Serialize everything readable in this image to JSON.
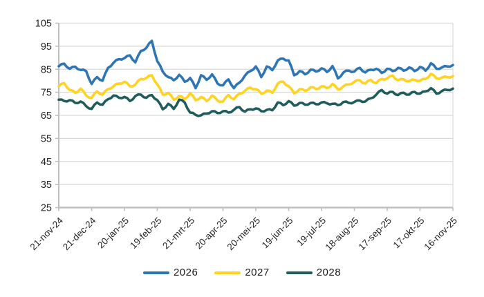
{
  "chart_data": {
    "type": "line",
    "title": "",
    "xlabel": "",
    "ylabel": "",
    "ylim": [
      25,
      105
    ],
    "y_ticks": [
      25,
      35,
      45,
      55,
      65,
      75,
      85,
      95,
      105
    ],
    "grid": true,
    "legend_position": "bottom",
    "grid_color": "#D9D9D9",
    "axis_color": "#BFBFBF",
    "label_color": "#262626",
    "x_tick_labels": [
      "21-nov-24",
      "21-dec-24",
      "20-jan-25",
      "19-feb-25",
      "21-mrt-25",
      "20-apr-25",
      "20-mei-25",
      "19-jun-25",
      "19-jul-25",
      "18-aug-25",
      "17-sep-25",
      "17-okt-25",
      "16-nov-25"
    ],
    "x_tick_days": [
      0,
      30,
      60,
      90,
      120,
      150,
      180,
      210,
      240,
      270,
      300,
      330,
      360
    ],
    "x_days": [
      0,
      5,
      10,
      15,
      20,
      25,
      30,
      35,
      40,
      45,
      50,
      55,
      60,
      65,
      70,
      75,
      80,
      85,
      90,
      95,
      100,
      105,
      110,
      115,
      120,
      125,
      130,
      135,
      140,
      145,
      150,
      155,
      160,
      165,
      170,
      175,
      180,
      185,
      190,
      195,
      200,
      205,
      210,
      215,
      220,
      225,
      230,
      235,
      240,
      245,
      250,
      255,
      260,
      265,
      270,
      275,
      280,
      285,
      290,
      295,
      300,
      305,
      310,
      315,
      320,
      325,
      330,
      335,
      340,
      345,
      350,
      355,
      360
    ],
    "series": [
      {
        "name": "2026",
        "color": "#2E75B6",
        "values": [
          86.3,
          87.4,
          85.2,
          86.1,
          84.7,
          84.2,
          78.6,
          81.6,
          80.0,
          85.6,
          87.8,
          89.4,
          89.8,
          91.0,
          88.0,
          93.0,
          94.3,
          97.3,
          88.5,
          84.0,
          81.6,
          80.2,
          82.6,
          79.6,
          81.2,
          76.8,
          82.4,
          80.4,
          82.8,
          78.8,
          78.0,
          80.6,
          76.8,
          79.2,
          82.2,
          84.2,
          86.2,
          81.6,
          86.2,
          84.6,
          88.8,
          89.6,
          88.8,
          82.4,
          84.2,
          82.8,
          84.8,
          84.0,
          85.4,
          83.8,
          86.4,
          81.0,
          83.6,
          84.4,
          84.0,
          85.6,
          83.6,
          84.8,
          85.2,
          83.4,
          85.2,
          84.2,
          85.6,
          84.4,
          85.8,
          84.2,
          86.0,
          84.4,
          87.6,
          85.2,
          85.8,
          86.2,
          86.8
        ]
      },
      {
        "name": "2027",
        "color": "#FFD320",
        "values": [
          77.6,
          79.0,
          76.0,
          74.8,
          76.6,
          73.6,
          72.6,
          75.4,
          74.0,
          76.4,
          77.6,
          78.8,
          79.6,
          77.6,
          78.4,
          80.8,
          81.2,
          82.4,
          78.4,
          74.0,
          74.8,
          71.8,
          73.4,
          72.0,
          74.6,
          71.6,
          73.0,
          71.2,
          73.6,
          71.4,
          71.0,
          73.8,
          72.0,
          74.4,
          75.6,
          77.0,
          76.4,
          74.4,
          75.8,
          74.8,
          78.8,
          79.6,
          77.6,
          74.6,
          76.4,
          75.6,
          77.2,
          76.4,
          77.6,
          76.8,
          78.6,
          76.2,
          77.6,
          78.4,
          79.6,
          80.2,
          78.8,
          80.4,
          79.0,
          80.8,
          81.0,
          82.2,
          80.2,
          80.6,
          79.8,
          80.4,
          80.0,
          80.8,
          83.0,
          81.0,
          81.4,
          81.6,
          82.0
        ]
      },
      {
        "name": "2028",
        "color": "#1F5C5B",
        "values": [
          71.8,
          71.2,
          71.6,
          70.4,
          71.0,
          69.0,
          67.8,
          70.6,
          69.6,
          72.0,
          73.6,
          72.6,
          73.0,
          71.2,
          73.4,
          74.0,
          72.6,
          73.8,
          71.6,
          67.6,
          70.0,
          67.8,
          71.8,
          70.6,
          66.2,
          65.2,
          65.0,
          65.8,
          66.8,
          66.0,
          66.8,
          66.2,
          67.4,
          68.6,
          66.6,
          67.6,
          68.0,
          66.8,
          67.4,
          67.2,
          70.6,
          69.4,
          71.2,
          69.2,
          70.4,
          69.6,
          70.4,
          69.8,
          70.6,
          70.2,
          70.0,
          69.4,
          70.8,
          70.4,
          70.8,
          71.4,
          71.0,
          72.4,
          74.0,
          76.0,
          74.4,
          75.2,
          73.8,
          74.8,
          74.0,
          75.2,
          74.4,
          75.4,
          76.8,
          74.4,
          75.6,
          76.0,
          76.6
        ]
      }
    ]
  }
}
